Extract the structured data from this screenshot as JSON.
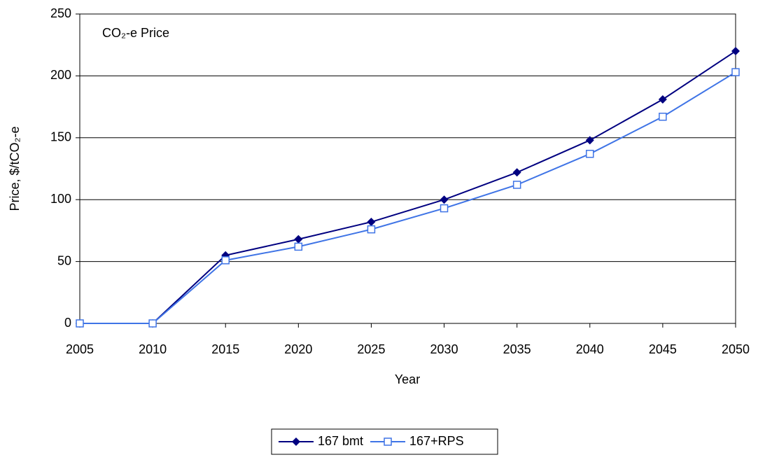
{
  "chart_data": {
    "type": "line",
    "annotation": "CO₂-e Price",
    "x_label": "Year",
    "y_label": "Price, $/tCO₂-e",
    "x": [
      2005,
      2010,
      2015,
      2020,
      2025,
      2030,
      2035,
      2040,
      2045,
      2050
    ],
    "series": [
      {
        "name": "167 bmt",
        "color": "#000080",
        "marker": "diamond",
        "values": [
          0,
          0,
          55,
          68,
          82,
          100,
          122,
          148,
          181,
          220
        ]
      },
      {
        "name": "167+RPS",
        "color": "#3f74e6",
        "marker": "square",
        "values": [
          0,
          0,
          51,
          62,
          76,
          93,
          112,
          137,
          167,
          203
        ]
      }
    ],
    "xlim": [
      2005,
      2050
    ],
    "xticks": [
      2005,
      2010,
      2015,
      2020,
      2025,
      2030,
      2035,
      2040,
      2045,
      2050
    ],
    "ylim": [
      0,
      250
    ],
    "yticks": [
      0,
      50,
      100,
      150,
      200,
      250
    ],
    "grid": true,
    "legend": "bottom"
  }
}
